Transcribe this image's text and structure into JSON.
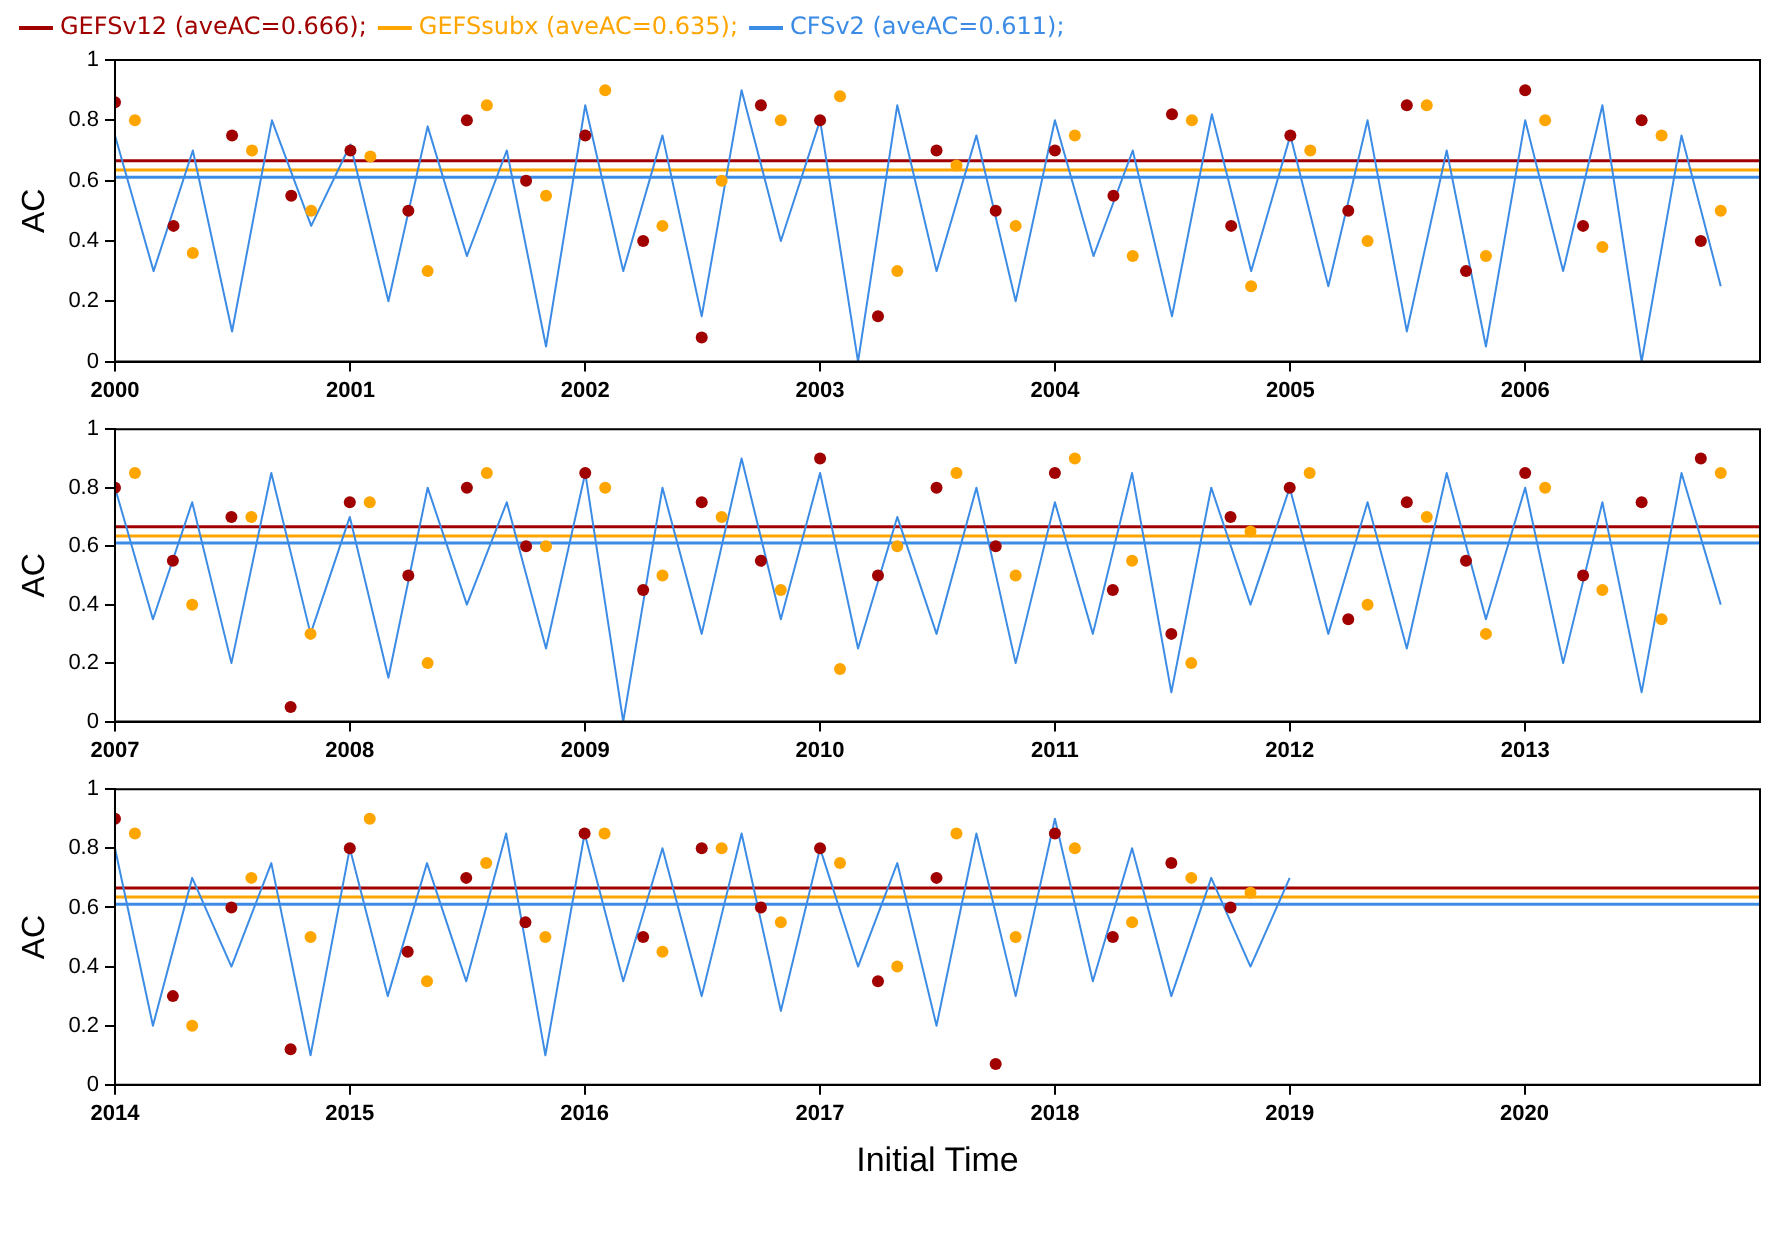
{
  "chart_data": [
    {
      "type": "scatter",
      "ylabel": "AC",
      "legend": "top",
      "marker": "circle",
      "grid": false,
      "xlim": [
        "2000",
        "2007"
      ],
      "xticks": [
        "2000",
        "2001",
        "2002",
        "2003",
        "2004",
        "2005",
        "2006"
      ],
      "ylim": [
        0,
        1
      ],
      "yticks": [
        0,
        0.2,
        0.4,
        0.6,
        0.8,
        1
      ],
      "ref_lines": [
        {
          "axis": "y",
          "value": 0.666,
          "color": "#a00000"
        },
        {
          "axis": "y",
          "value": 0.635,
          "color": "#ffa500"
        },
        {
          "axis": "y",
          "value": 0.611,
          "color": "#3c8ce6"
        }
      ],
      "series": [
        {
          "name": "CFSv2 (aveAC=0.611);",
          "type": "line",
          "marker": "none",
          "color": "#3c8ce6",
          "x": [
            "2000-01",
            "2000-03",
            "2000-05",
            "2000-07",
            "2000-09",
            "2000-11",
            "2001-01",
            "2001-03",
            "2001-05",
            "2001-07",
            "2001-09",
            "2001-11",
            "2002-01",
            "2002-03",
            "2002-05",
            "2002-07",
            "2002-09",
            "2002-11",
            "2003-01",
            "2003-03",
            "2003-05",
            "2003-07",
            "2003-09",
            "2003-11",
            "2004-01",
            "2004-03",
            "2004-05",
            "2004-07",
            "2004-09",
            "2004-11",
            "2005-01",
            "2005-03",
            "2005-05",
            "2005-07",
            "2005-09",
            "2005-11",
            "2006-01",
            "2006-03",
            "2006-05",
            "2006-07",
            "2006-09",
            "2006-11"
          ],
          "values": [
            0.75,
            0.3,
            0.7,
            0.1,
            0.8,
            0.45,
            0.72,
            0.2,
            0.78,
            0.35,
            0.7,
            0.05,
            0.85,
            0.3,
            0.75,
            0.15,
            0.9,
            0.4,
            0.8,
            0.0,
            0.85,
            0.3,
            0.75,
            0.2,
            0.8,
            0.35,
            0.7,
            0.15,
            0.82,
            0.3,
            0.75,
            0.25,
            0.8,
            0.1,
            0.7,
            0.05,
            0.8,
            0.3,
            0.85,
            0.0,
            0.75,
            0.25
          ]
        },
        {
          "name": "GEFSsubx (aveAC=0.635);",
          "color": "#ffa500",
          "x": [
            "2000-02",
            "2000-05",
            "2000-08",
            "2000-11",
            "2001-02",
            "2001-05",
            "2001-08",
            "2001-11",
            "2002-02",
            "2002-05",
            "2002-08",
            "2002-11",
            "2003-02",
            "2003-05",
            "2003-08",
            "2003-11",
            "2004-02",
            "2004-05",
            "2004-08",
            "2004-11",
            "2005-02",
            "2005-05",
            "2005-08",
            "2005-11",
            "2006-02",
            "2006-05",
            "2006-08",
            "2006-11"
          ],
          "values": [
            0.8,
            0.36,
            0.7,
            0.5,
            0.68,
            0.3,
            0.85,
            0.55,
            0.9,
            0.45,
            0.6,
            0.8,
            0.88,
            0.3,
            0.65,
            0.45,
            0.75,
            0.35,
            0.8,
            0.25,
            0.7,
            0.4,
            0.85,
            0.35,
            0.8,
            0.38,
            0.75,
            0.5
          ]
        },
        {
          "name": "GEFSv12 (aveAC=0.666);",
          "color": "#a00000",
          "x": [
            "2000-01",
            "2000-04",
            "2000-07",
            "2000-10",
            "2001-01",
            "2001-04",
            "2001-07",
            "2001-10",
            "2002-01",
            "2002-04",
            "2002-07",
            "2002-10",
            "2003-01",
            "2003-04",
            "2003-07",
            "2003-10",
            "2004-01",
            "2004-04",
            "2004-07",
            "2004-10",
            "2005-01",
            "2005-04",
            "2005-07",
            "2005-10",
            "2006-01",
            "2006-04",
            "2006-07",
            "2006-10"
          ],
          "values": [
            0.86,
            0.45,
            0.75,
            0.55,
            0.7,
            0.5,
            0.8,
            0.6,
            0.75,
            0.4,
            0.08,
            0.85,
            0.8,
            0.15,
            0.7,
            0.5,
            0.7,
            0.55,
            0.82,
            0.45,
            0.75,
            0.5,
            0.85,
            0.3,
            0.9,
            0.45,
            0.8,
            0.4
          ]
        }
      ]
    },
    {
      "type": "scatter",
      "ylabel": "AC",
      "marker": "circle",
      "grid": false,
      "xlim": [
        "2007",
        "2014"
      ],
      "xticks": [
        "2007",
        "2008",
        "2009",
        "2010",
        "2011",
        "2012",
        "2013"
      ],
      "ylim": [
        0,
        1
      ],
      "yticks": [
        0,
        0.2,
        0.4,
        0.6,
        0.8,
        1
      ],
      "ref_lines": [
        {
          "axis": "y",
          "value": 0.666,
          "color": "#a00000"
        },
        {
          "axis": "y",
          "value": 0.635,
          "color": "#ffa500"
        },
        {
          "axis": "y",
          "value": 0.611,
          "color": "#3c8ce6"
        }
      ],
      "series": [
        {
          "type": "line",
          "marker": "none",
          "color": "#3c8ce6",
          "x": [
            "2007-01",
            "2007-03",
            "2007-05",
            "2007-07",
            "2007-09",
            "2007-11",
            "2008-01",
            "2008-03",
            "2008-05",
            "2008-07",
            "2008-09",
            "2008-11",
            "2009-01",
            "2009-03",
            "2009-05",
            "2009-07",
            "2009-09",
            "2009-11",
            "2010-01",
            "2010-03",
            "2010-05",
            "2010-07",
            "2010-09",
            "2010-11",
            "2011-01",
            "2011-03",
            "2011-05",
            "2011-07",
            "2011-09",
            "2011-11",
            "2012-01",
            "2012-03",
            "2012-05",
            "2012-07",
            "2012-09",
            "2012-11",
            "2013-01",
            "2013-03",
            "2013-05",
            "2013-07",
            "2013-09",
            "2013-11"
          ],
          "values": [
            0.8,
            0.35,
            0.75,
            0.2,
            0.85,
            0.3,
            0.7,
            0.15,
            0.8,
            0.4,
            0.75,
            0.25,
            0.85,
            0.0,
            0.8,
            0.3,
            0.9,
            0.35,
            0.85,
            0.25,
            0.7,
            0.3,
            0.8,
            0.2,
            0.75,
            0.3,
            0.85,
            0.1,
            0.8,
            0.4,
            0.8,
            0.3,
            0.75,
            0.25,
            0.85,
            0.35,
            0.8,
            0.2,
            0.75,
            0.1,
            0.85,
            0.4
          ]
        },
        {
          "color": "#ffa500",
          "x": [
            "2007-02",
            "2007-05",
            "2007-08",
            "2007-11",
            "2008-02",
            "2008-05",
            "2008-08",
            "2008-11",
            "2009-02",
            "2009-05",
            "2009-08",
            "2009-11",
            "2010-02",
            "2010-05",
            "2010-08",
            "2010-11",
            "2011-02",
            "2011-05",
            "2011-08",
            "2011-11",
            "2012-02",
            "2012-05",
            "2012-08",
            "2012-11",
            "2013-02",
            "2013-05",
            "2013-08",
            "2013-11"
          ],
          "values": [
            0.85,
            0.4,
            0.7,
            0.3,
            0.75,
            0.2,
            0.85,
            0.6,
            0.8,
            0.5,
            0.7,
            0.45,
            0.18,
            0.6,
            0.85,
            0.5,
            0.9,
            0.55,
            0.2,
            0.65,
            0.85,
            0.4,
            0.7,
            0.3,
            0.8,
            0.45,
            0.35,
            0.85
          ]
        },
        {
          "color": "#a00000",
          "x": [
            "2007-01",
            "2007-04",
            "2007-07",
            "2007-10",
            "2008-01",
            "2008-04",
            "2008-07",
            "2008-10",
            "2009-01",
            "2009-04",
            "2009-07",
            "2009-10",
            "2010-01",
            "2010-04",
            "2010-07",
            "2010-10",
            "2011-01",
            "2011-04",
            "2011-07",
            "2011-10",
            "2012-01",
            "2012-04",
            "2012-07",
            "2012-10",
            "2013-01",
            "2013-04",
            "2013-07",
            "2013-10"
          ],
          "values": [
            0.8,
            0.55,
            0.7,
            0.05,
            0.75,
            0.5,
            0.8,
            0.6,
            0.85,
            0.45,
            0.75,
            0.55,
            0.9,
            0.5,
            0.8,
            0.6,
            0.85,
            0.45,
            0.3,
            0.7,
            0.8,
            0.35,
            0.75,
            0.55,
            0.85,
            0.5,
            0.75,
            0.9
          ]
        }
      ]
    },
    {
      "type": "scatter",
      "ylabel": "AC",
      "xlabel": "Initial Time",
      "marker": "circle",
      "grid": false,
      "xlim": [
        "2014",
        "2021"
      ],
      "xticks": [
        "2014",
        "2015",
        "2016",
        "2017",
        "2018",
        "2019",
        "2020"
      ],
      "ylim": [
        0,
        1
      ],
      "yticks": [
        0,
        0.2,
        0.4,
        0.6,
        0.8,
        1
      ],
      "ref_lines": [
        {
          "axis": "y",
          "value": 0.666,
          "color": "#a00000"
        },
        {
          "axis": "y",
          "value": 0.635,
          "color": "#ffa500"
        },
        {
          "axis": "y",
          "value": 0.611,
          "color": "#3c8ce6"
        }
      ],
      "series": [
        {
          "type": "line",
          "marker": "none",
          "color": "#3c8ce6",
          "x": [
            "2014-01",
            "2014-03",
            "2014-05",
            "2014-07",
            "2014-09",
            "2014-11",
            "2015-01",
            "2015-03",
            "2015-05",
            "2015-07",
            "2015-09",
            "2015-11",
            "2016-01",
            "2016-03",
            "2016-05",
            "2016-07",
            "2016-09",
            "2016-11",
            "2017-01",
            "2017-03",
            "2017-05",
            "2017-07",
            "2017-09",
            "2017-11",
            "2018-01",
            "2018-03",
            "2018-05",
            "2018-07",
            "2018-09",
            "2018-11",
            "2019-01"
          ],
          "values": [
            0.8,
            0.2,
            0.7,
            0.4,
            0.75,
            0.1,
            0.8,
            0.3,
            0.75,
            0.35,
            0.85,
            0.1,
            0.85,
            0.35,
            0.8,
            0.3,
            0.85,
            0.25,
            0.8,
            0.4,
            0.75,
            0.2,
            0.85,
            0.3,
            0.9,
            0.35,
            0.8,
            0.3,
            0.7,
            0.4,
            0.7
          ]
        },
        {
          "color": "#ffa500",
          "x": [
            "2014-02",
            "2014-05",
            "2014-08",
            "2014-11",
            "2015-02",
            "2015-05",
            "2015-08",
            "2015-11",
            "2016-02",
            "2016-05",
            "2016-08",
            "2016-11",
            "2017-02",
            "2017-05",
            "2017-08",
            "2017-11",
            "2018-02",
            "2018-05",
            "2018-08",
            "2018-11"
          ],
          "values": [
            0.85,
            0.2,
            0.7,
            0.5,
            0.9,
            0.35,
            0.75,
            0.5,
            0.85,
            0.45,
            0.8,
            0.55,
            0.75,
            0.4,
            0.85,
            0.5,
            0.8,
            0.55,
            0.7,
            0.65
          ]
        },
        {
          "color": "#a00000",
          "x": [
            "2014-01",
            "2014-04",
            "2014-07",
            "2014-10",
            "2015-01",
            "2015-04",
            "2015-07",
            "2015-10",
            "2016-01",
            "2016-04",
            "2016-07",
            "2016-10",
            "2017-01",
            "2017-04",
            "2017-07",
            "2017-10",
            "2018-01",
            "2018-04",
            "2018-07",
            "2018-10"
          ],
          "values": [
            0.9,
            0.3,
            0.6,
            0.12,
            0.8,
            0.45,
            0.7,
            0.55,
            0.85,
            0.5,
            0.8,
            0.6,
            0.8,
            0.35,
            0.7,
            0.07,
            0.85,
            0.5,
            0.75,
            0.6
          ]
        }
      ]
    }
  ]
}
